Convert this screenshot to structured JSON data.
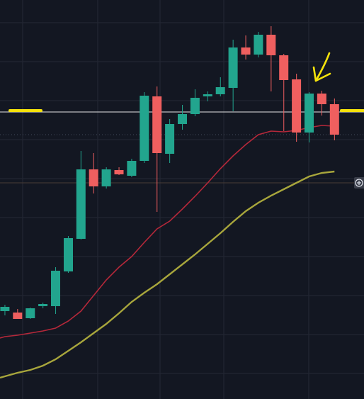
{
  "chart_data": {
    "type": "candlestick",
    "grid": true,
    "ylim": [
      0,
      563
    ],
    "colors": {
      "background": "#131722",
      "grid": "#242835",
      "up": "#22a58e",
      "down": "#ef5f5f",
      "ma_fast": "#b5283a",
      "ma_slow": "#a8a63c",
      "hline": "#e6e6e6",
      "highlight": "#f5e20b",
      "dotted": "#434a5a",
      "brown": "#4a3d35"
    },
    "hline_level": 405,
    "dotted_level": 373,
    "brown_level": 305,
    "candles": [
      {
        "t": 0,
        "o": 124,
        "h": 133,
        "l": 118,
        "c": 130
      },
      {
        "t": 1,
        "o": 122,
        "h": 127,
        "l": 113,
        "c": 113
      },
      {
        "t": 2,
        "o": 114,
        "h": 129,
        "l": 113,
        "c": 128
      },
      {
        "t": 3,
        "o": 131,
        "h": 136,
        "l": 128,
        "c": 134
      },
      {
        "t": 4,
        "o": 131,
        "h": 186,
        "l": 120,
        "c": 181
      },
      {
        "t": 5,
        "o": 180,
        "h": 230,
        "l": 178,
        "c": 227
      },
      {
        "t": 6,
        "o": 226,
        "h": 350,
        "l": 225,
        "c": 324
      },
      {
        "t": 7,
        "o": 324,
        "h": 347,
        "l": 290,
        "c": 300
      },
      {
        "t": 8,
        "o": 300,
        "h": 327,
        "l": 297,
        "c": 324
      },
      {
        "t": 9,
        "o": 323,
        "h": 327,
        "l": 316,
        "c": 317
      },
      {
        "t": 10,
        "o": 315,
        "h": 339,
        "l": 313,
        "c": 336
      },
      {
        "t": 11,
        "o": 336,
        "h": 433,
        "l": 333,
        "c": 428
      },
      {
        "t": 12,
        "o": 427,
        "h": 441,
        "l": 264,
        "c": 347
      },
      {
        "t": 13,
        "o": 346,
        "h": 395,
        "l": 333,
        "c": 388
      },
      {
        "t": 14,
        "o": 388,
        "h": 415,
        "l": 380,
        "c": 402
      },
      {
        "t": 15,
        "o": 402,
        "h": 437,
        "l": 399,
        "c": 425
      },
      {
        "t": 16,
        "o": 427,
        "h": 434,
        "l": 420,
        "c": 430
      },
      {
        "t": 17,
        "o": 430,
        "h": 454,
        "l": 427,
        "c": 440
      },
      {
        "t": 18,
        "o": 439,
        "h": 507,
        "l": 406,
        "c": 496
      },
      {
        "t": 19,
        "o": 496,
        "h": 513,
        "l": 479,
        "c": 486
      },
      {
        "t": 20,
        "o": 486,
        "h": 518,
        "l": 482,
        "c": 514
      },
      {
        "t": 21,
        "o": 514,
        "h": 526,
        "l": 434,
        "c": 485
      },
      {
        "t": 22,
        "o": 485,
        "h": 487,
        "l": 378,
        "c": 450
      },
      {
        "t": 23,
        "o": 451,
        "h": 459,
        "l": 363,
        "c": 376
      },
      {
        "t": 24,
        "o": 376,
        "h": 433,
        "l": 362,
        "c": 431
      },
      {
        "t": 25,
        "o": 431,
        "h": 435,
        "l": 400,
        "c": 416
      },
      {
        "t": 26,
        "o": 416,
        "h": 424,
        "l": 365,
        "c": 373
      }
    ],
    "ma_fast": [
      88,
      90,
      93,
      96,
      100,
      110,
      124,
      146,
      168,
      186,
      201,
      221,
      240,
      251,
      268,
      286,
      305,
      325,
      343,
      359,
      373,
      378,
      377,
      379,
      383,
      386,
      385
    ],
    "ma_slow": [
      32,
      37,
      41,
      47,
      56,
      68,
      80,
      93,
      106,
      121,
      137,
      150,
      162,
      176,
      190,
      204,
      219,
      234,
      250,
      265,
      277,
      287,
      296,
      305,
      314,
      319,
      321
    ]
  }
}
